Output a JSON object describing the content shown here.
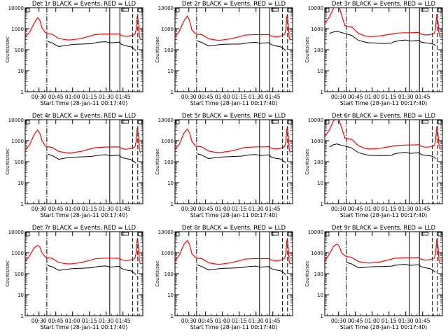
{
  "colors": {
    "events": "#000000",
    "lld": "#ff0000",
    "axis": "#000000",
    "background": "#ffffff"
  },
  "shared": {
    "ylabel": "Counts/sec",
    "xlabel": "Start Time (28-Jan-11 00:17:40)",
    "xticks": [
      "00:30",
      "00:45",
      "01:00",
      "01:15",
      "01:30",
      "01:45"
    ],
    "yticks": [
      "1",
      "10",
      "100",
      "1000",
      "10000"
    ],
    "time_axis_minutes_from_start": {
      "xlim": [
        0,
        105
      ],
      "tick_values": [
        12.33,
        27.33,
        42.33,
        57.33,
        72.33,
        87.33
      ]
    },
    "ylim": [
      1,
      10000
    ],
    "y_scale": "log",
    "markers": [
      {
        "style": "dash-dot",
        "x_min": 19.3
      },
      {
        "style": "solid",
        "x_min": 75.5
      },
      {
        "style": "solid",
        "x_min": 84.5
      },
      {
        "style": "dashed",
        "x_min": 96.0
      },
      {
        "style": "dashed",
        "x_min": 100.5
      }
    ]
  },
  "chart_data": [
    {
      "type": "line",
      "title": "Det 1r BLACK = Events, RED = LLD",
      "x": [
        0,
        4,
        8,
        11,
        13,
        15,
        18,
        20,
        24,
        30,
        36,
        40,
        44,
        50,
        56,
        60,
        62,
        66,
        72,
        76,
        80,
        84,
        86,
        90,
        94,
        96,
        98,
        99,
        100,
        101,
        102,
        103
      ],
      "series": [
        {
          "name": "Events",
          "x_start": 19.3,
          "values": [
            null,
            null,
            null,
            null,
            null,
            null,
            null,
            250,
            210,
            140,
            160,
            170,
            180,
            185,
            190,
            195,
            210,
            230,
            240,
            210,
            220,
            230,
            180,
            150,
            140,
            120,
            100,
            90,
            null,
            null,
            null,
            null
          ]
        },
        {
          "name": "LLD",
          "values": [
            400,
            700,
            1800,
            3300,
            2600,
            1100,
            650,
            600,
            550,
            340,
            300,
            290,
            310,
            340,
            420,
            480,
            520,
            540,
            560,
            560,
            560,
            570,
            470,
            430,
            460,
            490,
            550,
            900,
            4000,
            2500,
            400,
            300
          ]
        }
      ]
    },
    {
      "type": "line",
      "title": "Det 2r BLACK = Events, RED = LLD",
      "x": [
        0,
        4,
        8,
        11,
        13,
        15,
        18,
        20,
        24,
        30,
        36,
        40,
        44,
        50,
        56,
        60,
        62,
        66,
        72,
        76,
        80,
        84,
        86,
        90,
        94,
        96,
        98,
        99,
        100,
        101,
        102,
        103
      ],
      "series": [
        {
          "name": "Events",
          "x_start": 19.3,
          "values": [
            null,
            null,
            null,
            null,
            null,
            null,
            null,
            260,
            220,
            150,
            165,
            175,
            180,
            185,
            185,
            190,
            200,
            215,
            225,
            200,
            210,
            215,
            175,
            150,
            140,
            120,
            100,
            90,
            null,
            null,
            null,
            null
          ]
        },
        {
          "name": "LLD",
          "values": [
            380,
            800,
            2400,
            4000,
            2400,
            900,
            600,
            560,
            520,
            330,
            290,
            280,
            300,
            330,
            400,
            450,
            490,
            510,
            520,
            520,
            520,
            530,
            450,
            400,
            440,
            480,
            550,
            1000,
            4500,
            2000,
            350,
            280
          ]
        }
      ]
    },
    {
      "type": "line",
      "title": "Det 3r BLACK = Events, RED = LLD",
      "x": [
        0,
        4,
        8,
        11,
        13,
        15,
        18,
        20,
        24,
        30,
        36,
        40,
        44,
        50,
        56,
        60,
        62,
        66,
        72,
        76,
        80,
        84,
        86,
        90,
        94,
        96,
        98,
        99,
        100,
        101,
        102,
        103
      ],
      "series": [
        {
          "name": "Events",
          "x_start": 5,
          "values": [
            null,
            600,
            700,
            750,
            700,
            650,
            600,
            560,
            480,
            280,
            230,
            210,
            210,
            200,
            200,
            210,
            240,
            270,
            290,
            260,
            270,
            280,
            230,
            210,
            200,
            190,
            170,
            150,
            null,
            null,
            null,
            null
          ]
        },
        {
          "name": "LLD",
          "values": [
            1800,
            3500,
            10000,
            10000,
            10000,
            4500,
            1400,
            1300,
            1200,
            600,
            450,
            420,
            430,
            460,
            520,
            560,
            600,
            620,
            640,
            640,
            650,
            660,
            560,
            500,
            520,
            560,
            620,
            1200,
            5000,
            2500,
            600,
            400
          ]
        }
      ]
    },
    {
      "type": "line",
      "title": "Det 4r BLACK = Events, RED = LLD",
      "x": [
        0,
        4,
        8,
        11,
        13,
        15,
        18,
        20,
        24,
        30,
        36,
        40,
        44,
        50,
        56,
        60,
        62,
        66,
        72,
        76,
        80,
        84,
        86,
        90,
        94,
        96,
        98,
        99,
        100,
        101,
        102,
        103
      ],
      "series": [
        {
          "name": "Events",
          "x_start": 19.3,
          "values": [
            null,
            null,
            null,
            null,
            null,
            null,
            null,
            230,
            200,
            130,
            150,
            160,
            165,
            170,
            175,
            180,
            190,
            205,
            215,
            190,
            200,
            205,
            160,
            140,
            130,
            110,
            95,
            85,
            null,
            null,
            null,
            null
          ]
        },
        {
          "name": "LLD",
          "values": [
            350,
            650,
            2000,
            3200,
            2300,
            1000,
            560,
            520,
            480,
            310,
            270,
            260,
            280,
            310,
            380,
            430,
            460,
            480,
            500,
            500,
            500,
            510,
            430,
            390,
            420,
            460,
            520,
            900,
            4000,
            2200,
            350,
            260
          ]
        }
      ]
    },
    {
      "type": "line",
      "title": "Det 5r BLACK = Events, RED = LLD",
      "x": [
        0,
        4,
        8,
        11,
        13,
        15,
        18,
        20,
        24,
        30,
        36,
        40,
        44,
        50,
        56,
        60,
        62,
        66,
        72,
        76,
        80,
        84,
        86,
        90,
        94,
        96,
        98,
        99,
        100,
        101,
        102,
        103
      ],
      "series": [
        {
          "name": "Events",
          "x_start": 19.3,
          "values": [
            null,
            null,
            null,
            null,
            null,
            null,
            null,
            240,
            205,
            140,
            155,
            165,
            170,
            175,
            180,
            185,
            195,
            210,
            220,
            195,
            205,
            210,
            165,
            145,
            135,
            115,
            98,
            88,
            null,
            null,
            null,
            null
          ]
        },
        {
          "name": "LLD",
          "values": [
            370,
            700,
            2300,
            3600,
            2400,
            950,
            580,
            540,
            500,
            320,
            280,
            270,
            290,
            320,
            390,
            440,
            470,
            490,
            510,
            510,
            510,
            520,
            440,
            400,
            430,
            470,
            530,
            950,
            4200,
            2300,
            360,
            270
          ]
        }
      ]
    },
    {
      "type": "line",
      "title": "Det 6r BLACK = Events, RED = LLD",
      "x": [
        0,
        4,
        8,
        11,
        13,
        15,
        18,
        20,
        24,
        30,
        36,
        40,
        44,
        50,
        56,
        60,
        62,
        66,
        72,
        76,
        80,
        84,
        86,
        90,
        94,
        96,
        98,
        99,
        100,
        101,
        102,
        103
      ],
      "series": [
        {
          "name": "Events",
          "x_start": 5,
          "values": [
            null,
            500,
            650,
            700,
            650,
            600,
            560,
            520,
            450,
            270,
            220,
            200,
            200,
            195,
            195,
            205,
            235,
            260,
            280,
            250,
            260,
            270,
            220,
            200,
            190,
            180,
            160,
            140,
            null,
            null,
            null,
            null
          ]
        },
        {
          "name": "LLD",
          "values": [
            1600,
            3200,
            9500,
            10000,
            9000,
            4200,
            1300,
            1250,
            1150,
            580,
            430,
            400,
            410,
            440,
            500,
            540,
            580,
            600,
            620,
            620,
            630,
            640,
            540,
            490,
            510,
            550,
            610,
            1150,
            4800,
            2400,
            580,
            380
          ]
        }
      ]
    },
    {
      "type": "line",
      "title": "Det 7r BLACK = Events, RED = LLD",
      "x": [
        0,
        4,
        8,
        11,
        13,
        15,
        18,
        20,
        24,
        30,
        36,
        40,
        44,
        50,
        56,
        60,
        62,
        66,
        72,
        76,
        80,
        84,
        86,
        90,
        94,
        96,
        98,
        99,
        100,
        101,
        102,
        103
      ],
      "series": [
        {
          "name": "Events",
          "x_start": 19.3,
          "values": [
            null,
            null,
            null,
            null,
            null,
            null,
            null,
            250,
            215,
            145,
            160,
            170,
            178,
            182,
            188,
            192,
            205,
            225,
            235,
            205,
            215,
            225,
            178,
            150,
            140,
            120,
            100,
            90,
            null,
            null,
            null,
            null
          ]
        },
        {
          "name": "LLD",
          "values": [
            390,
            720,
            1700,
            2200,
            1900,
            1000,
            620,
            580,
            540,
            340,
            300,
            290,
            310,
            340,
            410,
            470,
            510,
            530,
            550,
            550,
            550,
            560,
            460,
            420,
            450,
            480,
            540,
            950,
            4500,
            2500,
            380,
            290
          ]
        }
      ]
    },
    {
      "type": "line",
      "title": "Det 8r BLACK = Events, RED = LLD",
      "x": [
        0,
        4,
        8,
        11,
        13,
        15,
        18,
        20,
        24,
        30,
        36,
        40,
        44,
        50,
        56,
        60,
        62,
        66,
        72,
        76,
        80,
        84,
        86,
        90,
        94,
        96,
        98,
        99,
        100,
        101,
        102,
        103
      ],
      "series": [
        {
          "name": "Events",
          "x_start": 19.3,
          "values": [
            null,
            null,
            null,
            null,
            null,
            null,
            null,
            255,
            220,
            150,
            165,
            175,
            180,
            185,
            190,
            195,
            205,
            220,
            230,
            205,
            212,
            220,
            175,
            150,
            140,
            120,
            100,
            90,
            null,
            null,
            null,
            null
          ]
        },
        {
          "name": "LLD",
          "values": [
            390,
            820,
            2500,
            3800,
            2400,
            920,
            600,
            560,
            520,
            330,
            290,
            280,
            300,
            330,
            400,
            450,
            490,
            510,
            520,
            520,
            520,
            530,
            450,
            400,
            440,
            480,
            550,
            1000,
            4500,
            2100,
            350,
            280
          ]
        }
      ]
    },
    {
      "type": "line",
      "title": "Det 9r BLACK = Events, RED = LLD",
      "x": [
        0,
        4,
        8,
        11,
        13,
        15,
        18,
        20,
        24,
        30,
        36,
        40,
        44,
        50,
        56,
        60,
        62,
        66,
        72,
        76,
        80,
        84,
        86,
        90,
        94,
        96,
        98,
        99,
        100,
        101,
        102,
        103
      ],
      "series": [
        {
          "name": "Events",
          "x_start": 19.3,
          "values": [
            null,
            null,
            null,
            null,
            null,
            null,
            null,
            340,
            290,
            190,
            200,
            210,
            215,
            220,
            225,
            230,
            245,
            265,
            280,
            250,
            260,
            270,
            215,
            190,
            175,
            150,
            130,
            115,
            null,
            null,
            null,
            null
          ]
        },
        {
          "name": "LLD",
          "values": [
            400,
            850,
            2100,
            2600,
            2000,
            1000,
            700,
            650,
            600,
            380,
            330,
            320,
            340,
            370,
            440,
            500,
            540,
            560,
            580,
            580,
            580,
            590,
            490,
            440,
            470,
            510,
            570,
            1000,
            4600,
            2300,
            400,
            300
          ]
        }
      ]
    }
  ]
}
